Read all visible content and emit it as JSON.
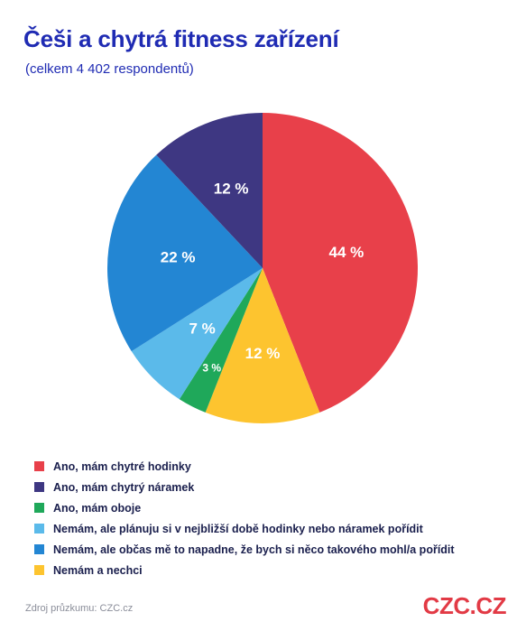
{
  "title": "Češi a chytrá fitness zařízení",
  "subtitle": "(celkem 4 402 respondentů)",
  "source": "Zdroj průzkumu: CZC.cz",
  "brand": "CZC.CZ",
  "chart_data": {
    "type": "pie",
    "title": "Češi a chytrá fitness zařízení",
    "subtitle": "(celkem 4 402 respondentů)",
    "unit": "%",
    "slices": [
      {
        "label": "Ano, mám chytré hodinky",
        "value": 44,
        "display": "44 %",
        "color": "#e8404a"
      },
      {
        "label": "Nemám a nechci",
        "value": 12,
        "display": "12 %",
        "color": "#fdc42f"
      },
      {
        "label": "Ano, mám oboje",
        "value": 3,
        "display": "3 %",
        "color": "#1fa85a"
      },
      {
        "label": "Nemám, ale plánuju si v nejbližší době hodinky nebo náramek pořídit",
        "value": 7,
        "display": "7 %",
        "color": "#5bbaea"
      },
      {
        "label": "Nemám, ale občas mě to napadne, že bych si něco takového mohl/a pořídit",
        "value": 22,
        "display": "22 %",
        "color": "#2386d3"
      },
      {
        "label": "Ano, mám chytrý náramek",
        "value": 12,
        "display": "12 %",
        "color": "#3e3782"
      }
    ],
    "legend": [
      {
        "label": "Ano, mám chytré hodinky",
        "color": "#e8404a"
      },
      {
        "label": "Ano, mám chytrý náramek",
        "color": "#3e3782"
      },
      {
        "label": "Ano, mám oboje",
        "color": "#1fa85a"
      },
      {
        "label": "Nemám, ale plánuju si v nejbližší době hodinky nebo náramek pořídit",
        "color": "#5bbaea"
      },
      {
        "label": "Nemám, ale občas mě to napadne, že bych si něco takového mohl/a pořídit",
        "color": "#2386d3"
      },
      {
        "label": "Nemám a nechci",
        "color": "#fdc42f"
      }
    ],
    "legend_position": "bottom"
  }
}
